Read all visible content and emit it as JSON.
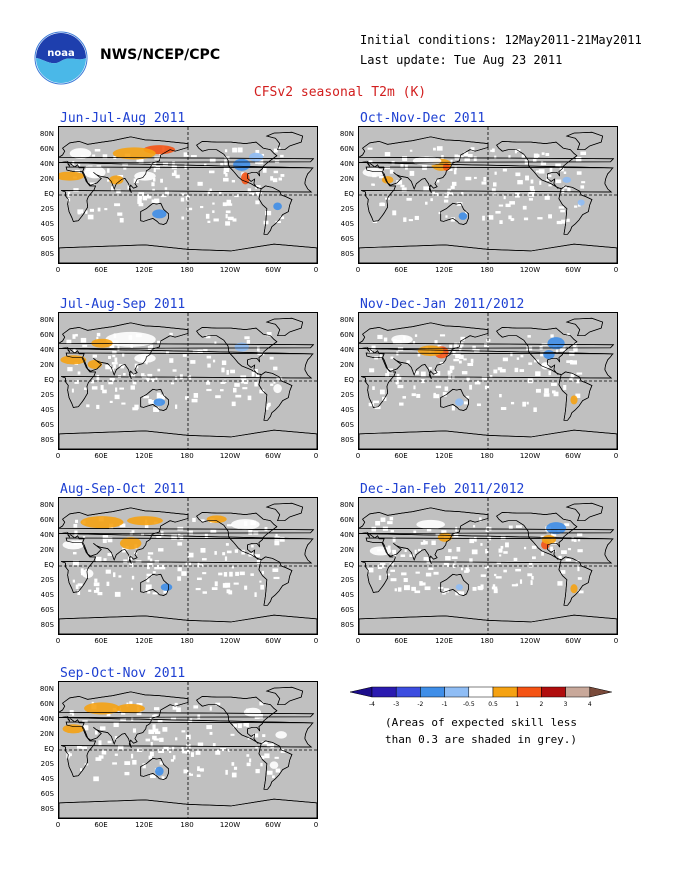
{
  "header": {
    "org": "NWS/NCEP/CPC",
    "initial_conditions": "Initial conditions: 12May2011-21May2011",
    "last_update": "Last update: Tue Aug 23 2011",
    "title": "CFSv2 seasonal T2m (K)"
  },
  "logo": {
    "icon": "noaa-logo-icon",
    "text": "noaa"
  },
  "axes": {
    "lat_labels": [
      "80N",
      "60N",
      "40N",
      "20N",
      "EQ",
      "20S",
      "40S",
      "60S",
      "80S"
    ],
    "lon_labels": [
      "0",
      "60E",
      "120E",
      "180",
      "120W",
      "60W",
      "0"
    ]
  },
  "panels": [
    {
      "title": "Jun-Jul-Aug 2011"
    },
    {
      "title": "Oct-Nov-Dec 2011"
    },
    {
      "title": "Jul-Aug-Sep 2011"
    },
    {
      "title": "Nov-Dec-Jan 2011/2012"
    },
    {
      "title": "Aug-Sep-Oct 2011"
    },
    {
      "title": "Dec-Jan-Feb 2011/2012"
    },
    {
      "title": "Sep-Oct-Nov 2011"
    }
  ],
  "colorbar": {
    "ticks": [
      "-4",
      "-3",
      "-2",
      "-1",
      "-0.5",
      "0.5",
      "1",
      "2",
      "3",
      "4"
    ],
    "colors": [
      "#2a1ab0",
      "#3c4de0",
      "#3f8ee8",
      "#8fbdf5",
      "#ffffff",
      "#f5a213",
      "#f55314",
      "#b00d0d",
      "#c8a89a"
    ],
    "low_arrow_color": "#1c0d8c",
    "high_arrow_color": "#7a4a3a",
    "note_line1": "(Areas of expected skill less",
    "note_line2": "than 0.3 are shaded in grey.)"
  },
  "colors": {
    "map_background": "#c0c0c0",
    "title_red": "#d21e1e",
    "panel_title_blue": "#1e40d2"
  }
}
